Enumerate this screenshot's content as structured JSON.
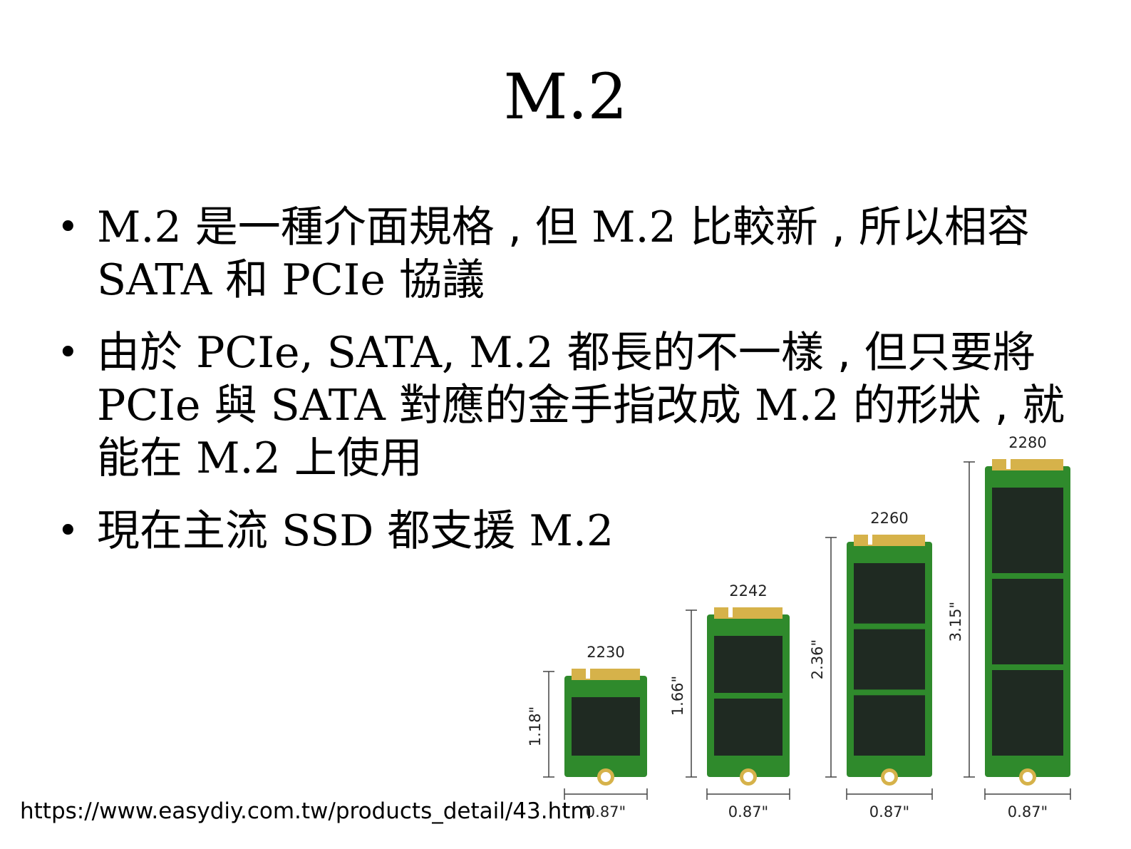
{
  "slide": {
    "title": "M.2",
    "bullets": [
      {
        "parts": [
          {
            "text": "M.2",
            "serif": true
          },
          {
            "text": " 是一種介面規格 , 但 ",
            "serif": false
          },
          {
            "text": "M.2",
            "serif": true
          },
          {
            "text": " 比較新 , 所以相容 ",
            "serif": false
          },
          {
            "text": "SATA",
            "serif": true
          },
          {
            "text": " 和 ",
            "serif": false
          },
          {
            "text": "PCIe",
            "serif": true
          },
          {
            "text": " 協議",
            "serif": false
          }
        ]
      },
      {
        "parts": [
          {
            "text": "由於 ",
            "serif": false
          },
          {
            "text": "PCIe, SATA, M.2",
            "serif": true
          },
          {
            "text": " 都長的不一樣 , 但只要將 ",
            "serif": false
          },
          {
            "text": "PCIe",
            "serif": true
          },
          {
            "text": " 與 ",
            "serif": false
          },
          {
            "text": "SATA",
            "serif": true
          },
          {
            "text": " 對應的金手指改成 ",
            "serif": false
          },
          {
            "text": "M.2",
            "serif": true
          },
          {
            "text": " 的形狀 , 就能在 ",
            "serif": false
          },
          {
            "text": "M.2",
            "serif": true
          },
          {
            "text": " 上使用",
            "serif": false
          }
        ]
      },
      {
        "parts": [
          {
            "text": "現在主流 ",
            "serif": false
          },
          {
            "text": "SSD",
            "serif": true
          },
          {
            "text": " 都支援 ",
            "serif": false
          },
          {
            "text": "M.2",
            "serif": true
          }
        ]
      }
    ],
    "source_url": "https://www.easydiy.com.tw/products_detail/43.htm"
  },
  "figure": {
    "pcb_color": "#2f8a2c",
    "chip_color": "#1f2a22",
    "gold_color": "#d6b24a",
    "modules": [
      {
        "model": "2230",
        "length": "1.18\"",
        "width": "0.87\"",
        "chips": 1
      },
      {
        "model": "2242",
        "length": "1.66\"",
        "width": "0.87\"",
        "chips": 2
      },
      {
        "model": "2260",
        "length": "2.36\"",
        "width": "0.87\"",
        "chips": 3
      },
      {
        "model": "2280",
        "length": "3.15\"",
        "width": "0.87\"",
        "chips": 3
      }
    ]
  }
}
